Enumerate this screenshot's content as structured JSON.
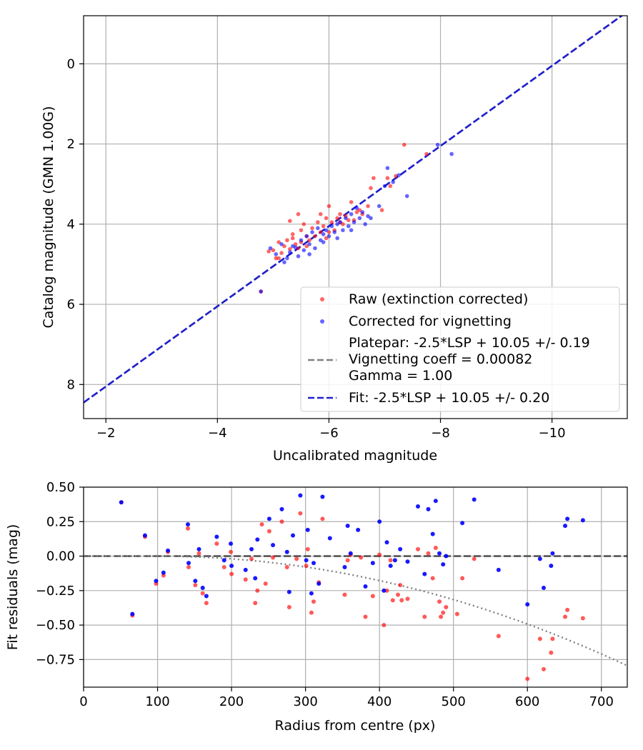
{
  "chart_data": [
    {
      "type": "scatter",
      "xlabel": "Uncalibrated magnitude",
      "ylabel": "Catalog magnitude (GMN 1.00G)",
      "xlim": [
        -1.6,
        -11.35
      ],
      "ylim": [
        -1.2,
        8.85
      ],
      "x_ticks": [
        -2,
        -4,
        -6,
        -8,
        -10
      ],
      "x_tick_labels": [
        "−2",
        "−4",
        "−6",
        "−8",
        "−10"
      ],
      "y_ticks": [
        0,
        2,
        4,
        6,
        8
      ],
      "y_tick_labels": [
        "0",
        "2",
        "4",
        "6",
        "8"
      ],
      "grid": true,
      "legend_position": "lower-right",
      "legend": {
        "raw": "Raw (extinction corrected)",
        "corrected": "Corrected for vignetting",
        "platepar_lines": [
          "Platepar: -2.5*LSP + 10.05 +/- 0.19",
          "Vignetting coeff = 0.00082",
          "Gamma = 1.00"
        ],
        "fit": "Fit: -2.5*LSP + 10.05 +/- 0.20"
      },
      "colors": {
        "raw": "#ff0000",
        "corrected": "#0000ff",
        "platepar": "#808080",
        "fit": "#2020d0"
      },
      "series": [
        {
          "name": "Raw (extinction corrected)",
          "points": [
            [
              -4.78,
              5.68
            ],
            [
              -4.92,
              4.68
            ],
            [
              -5.0,
              4.65
            ],
            [
              -5.05,
              4.85
            ],
            [
              -5.1,
              4.45
            ],
            [
              -5.15,
              4.72
            ],
            [
              -5.2,
              4.55
            ],
            [
              -5.25,
              4.4
            ],
            [
              -5.3,
              3.92
            ],
            [
              -5.3,
              4.62
            ],
            [
              -5.35,
              4.25
            ],
            [
              -5.4,
              4.5
            ],
            [
              -5.45,
              4.6
            ],
            [
              -5.5,
              4.15
            ],
            [
              -5.5,
              4.45
            ],
            [
              -5.55,
              4.0
            ],
            [
              -5.6,
              4.3
            ],
            [
              -5.65,
              4.4
            ],
            [
              -5.7,
              4.1
            ],
            [
              -5.75,
              4.3
            ],
            [
              -5.8,
              3.95
            ],
            [
              -5.85,
              4.2
            ],
            [
              -5.9,
              4.05
            ],
            [
              -5.95,
              4.35
            ],
            [
              -6.0,
              3.55
            ],
            [
              -6.05,
              3.95
            ],
            [
              -6.1,
              4.15
            ],
            [
              -6.15,
              3.85
            ],
            [
              -6.2,
              3.75
            ],
            [
              -6.25,
              4.0
            ],
            [
              -6.3,
              3.8
            ],
            [
              -6.35,
              3.9
            ],
            [
              -6.4,
              3.45
            ],
            [
              -6.45,
              3.9
            ],
            [
              -6.5,
              3.7
            ],
            [
              -6.55,
              3.65
            ],
            [
              -6.6,
              3.75
            ],
            [
              -6.7,
              3.55
            ],
            [
              -6.75,
              3.1
            ],
            [
              -6.8,
              2.85
            ],
            [
              -6.95,
              3.65
            ],
            [
              -7.05,
              2.85
            ],
            [
              -7.1,
              3.05
            ],
            [
              -7.2,
              2.8
            ],
            [
              -7.35,
              2.02
            ],
            [
              -7.75,
              2.25
            ],
            [
              -5.1,
              4.85
            ],
            [
              -5.35,
              4.35
            ],
            [
              -5.6,
              4.55
            ],
            [
              -5.85,
              3.75
            ],
            [
              -6.0,
              4.2
            ],
            [
              -6.2,
              3.95
            ],
            [
              -5.45,
              3.75
            ],
            [
              -5.95,
              3.85
            ]
          ]
        },
        {
          "name": "Corrected for vignetting",
          "points": [
            [
              -4.78,
              5.68
            ],
            [
              -4.95,
              4.6
            ],
            [
              -5.05,
              4.75
            ],
            [
              -5.15,
              4.5
            ],
            [
              -5.2,
              4.95
            ],
            [
              -5.3,
              4.7
            ],
            [
              -5.4,
              4.58
            ],
            [
              -5.45,
              4.8
            ],
            [
              -5.5,
              4.4
            ],
            [
              -5.55,
              4.65
            ],
            [
              -5.6,
              4.3
            ],
            [
              -5.65,
              4.5
            ],
            [
              -5.7,
              4.2
            ],
            [
              -5.75,
              4.6
            ],
            [
              -5.8,
              4.1
            ],
            [
              -5.85,
              4.4
            ],
            [
              -5.9,
              4.25
            ],
            [
              -5.95,
              4.15
            ],
            [
              -6.0,
              4.3
            ],
            [
              -6.05,
              4.05
            ],
            [
              -6.1,
              4.2
            ],
            [
              -6.15,
              4.0
            ],
            [
              -6.2,
              3.95
            ],
            [
              -6.25,
              4.15
            ],
            [
              -6.3,
              3.85
            ],
            [
              -6.35,
              4.05
            ],
            [
              -6.4,
              3.75
            ],
            [
              -6.45,
              3.95
            ],
            [
              -6.5,
              3.6
            ],
            [
              -6.55,
              3.85
            ],
            [
              -6.6,
              3.7
            ],
            [
              -6.65,
              4.0
            ],
            [
              -6.75,
              3.85
            ],
            [
              -6.9,
              3.55
            ],
            [
              -7.0,
              3.05
            ],
            [
              -7.05,
              2.6
            ],
            [
              -7.15,
              2.95
            ],
            [
              -7.25,
              2.78
            ],
            [
              -7.95,
              2.02
            ],
            [
              -8.2,
              2.25
            ],
            [
              -5.35,
              4.55
            ],
            [
              -5.65,
              4.75
            ],
            [
              -5.9,
              4.45
            ],
            [
              -6.15,
              4.35
            ],
            [
              -6.4,
              4.15
            ],
            [
              -6.7,
              3.8
            ],
            [
              -7.4,
              3.3
            ],
            [
              -5.25,
              4.85
            ]
          ]
        }
      ],
      "lines": [
        {
          "name": "Platepar",
          "intercept": 10.05,
          "slope": -2.5
        },
        {
          "name": "Fit",
          "intercept": 10.05,
          "slope": -2.5
        }
      ]
    },
    {
      "type": "scatter",
      "xlabel": "Radius from centre (px)",
      "ylabel": "Fit residuals (mag)",
      "xlim": [
        0,
        735
      ],
      "ylim": [
        -0.95,
        0.5
      ],
      "x_ticks": [
        0,
        100,
        200,
        300,
        400,
        500,
        600,
        700
      ],
      "x_tick_labels": [
        "0",
        "100",
        "200",
        "300",
        "400",
        "500",
        "600",
        "700"
      ],
      "y_ticks": [
        0.5,
        0.25,
        0.0,
        -0.25,
        -0.5,
        -0.75
      ],
      "y_tick_labels": [
        "0.50",
        "0.25",
        "0.00",
        "−0.25",
        "−0.50",
        "−0.75"
      ],
      "grid": true,
      "colors": {
        "raw": "#ff0000",
        "corrected": "#0000ff",
        "zero_line": "#555555",
        "vignetting_curve": "#808080"
      },
      "series": [
        {
          "name": "Raw (extinction corrected)",
          "points": [
            [
              51,
              0.39
            ],
            [
              66,
              -0.43
            ],
            [
              83,
              0.14
            ],
            [
              98,
              -0.2
            ],
            [
              108,
              -0.14
            ],
            [
              114,
              0.03
            ],
            [
              141,
              0.2
            ],
            [
              142,
              -0.08
            ],
            [
              151,
              -0.21
            ],
            [
              156,
              0.02
            ],
            [
              161,
              -0.27
            ],
            [
              166,
              -0.34
            ],
            [
              180,
              0.09
            ],
            [
              190,
              -0.08
            ],
            [
              199,
              0.03
            ],
            [
              200,
              -0.13
            ],
            [
              219,
              -0.17
            ],
            [
              227,
              -0.02
            ],
            [
              232,
              -0.34
            ],
            [
              235,
              -0.25
            ],
            [
              241,
              0.23
            ],
            [
              246,
              -0.2
            ],
            [
              251,
              0.18
            ],
            [
              256,
              -0.01
            ],
            [
              268,
              0.25
            ],
            [
              275,
              -0.08
            ],
            [
              278,
              -0.37
            ],
            [
              288,
              -0.02
            ],
            [
              293,
              0.31
            ],
            [
              301,
              -0.07
            ],
            [
              303,
              0.05
            ],
            [
              308,
              -0.41
            ],
            [
              311,
              -0.33
            ],
            [
              318,
              -0.19
            ],
            [
              323,
              0.27
            ],
            [
              353,
              -0.28
            ],
            [
              357,
              -0.03
            ],
            [
              361,
              0.01
            ],
            [
              375,
              -0.01
            ],
            [
              381,
              -0.44
            ],
            [
              391,
              -0.29
            ],
            [
              400,
              0.01
            ],
            [
              406,
              -0.5
            ],
            [
              410,
              -0.25
            ],
            [
              415,
              -0.03
            ],
            [
              418,
              -0.32
            ],
            [
              425,
              -0.28
            ],
            [
              428,
              -0.21
            ],
            [
              430,
              -0.32
            ],
            [
              438,
              -0.31
            ],
            [
              452,
              0.05
            ],
            [
              461,
              -0.44
            ],
            [
              466,
              0.02
            ],
            [
              472,
              -0.16
            ],
            [
              476,
              0.06
            ],
            [
              481,
              -0.33
            ],
            [
              483,
              -0.44
            ],
            [
              486,
              -0.41
            ],
            [
              490,
              -0.37
            ],
            [
              505,
              -0.42
            ],
            [
              512,
              -0.16
            ],
            [
              528,
              -0.02
            ],
            [
              561,
              -0.58
            ],
            [
              600,
              -0.89
            ],
            [
              617,
              -0.6
            ],
            [
              622,
              -0.82
            ],
            [
              632,
              -0.7
            ],
            [
              634,
              -0.6
            ],
            [
              651,
              -0.44
            ],
            [
              654,
              -0.39
            ],
            [
              675,
              -0.45
            ]
          ]
        },
        {
          "name": "Corrected for vignetting",
          "points": [
            [
              51,
              0.39
            ],
            [
              66,
              -0.42
            ],
            [
              83,
              0.15
            ],
            [
              98,
              -0.18
            ],
            [
              108,
              -0.12
            ],
            [
              114,
              0.04
            ],
            [
              141,
              0.23
            ],
            [
              142,
              -0.05
            ],
            [
              151,
              -0.18
            ],
            [
              156,
              0.05
            ],
            [
              161,
              -0.23
            ],
            [
              166,
              -0.29
            ],
            [
              180,
              0.14
            ],
            [
              190,
              -0.03
            ],
            [
              199,
              0.09
            ],
            [
              200,
              -0.07
            ],
            [
              219,
              -0.1
            ],
            [
              227,
              0.05
            ],
            [
              232,
              -0.16
            ],
            [
              235,
              0.12
            ],
            [
              251,
              0.27
            ],
            [
              256,
              0.08
            ],
            [
              268,
              0.34
            ],
            [
              275,
              0.03
            ],
            [
              278,
              -0.26
            ],
            [
              283,
              0.15
            ],
            [
              293,
              0.44
            ],
            [
              301,
              -0.03
            ],
            [
              303,
              0.19
            ],
            [
              308,
              -0.27
            ],
            [
              311,
              -0.05
            ],
            [
              318,
              -0.2
            ],
            [
              323,
              0.43
            ],
            [
              333,
              0.13
            ],
            [
              353,
              -0.08
            ],
            [
              357,
              0.22
            ],
            [
              361,
              0.02
            ],
            [
              371,
              0.19
            ],
            [
              381,
              -0.22
            ],
            [
              391,
              -0.05
            ],
            [
              400,
              0.25
            ],
            [
              406,
              -0.25
            ],
            [
              410,
              0.1
            ],
            [
              415,
              -0.07
            ],
            [
              421,
              -0.03
            ],
            [
              428,
              0.05
            ],
            [
              438,
              -0.04
            ],
            [
              452,
              0.36
            ],
            [
              461,
              -0.13
            ],
            [
              466,
              0.34
            ],
            [
              472,
              0.16
            ],
            [
              476,
              0.4
            ],
            [
              481,
              0.02
            ],
            [
              486,
              -0.06
            ],
            [
              490,
              0.0
            ],
            [
              512,
              0.24
            ],
            [
              528,
              0.41
            ],
            [
              561,
              -0.1
            ],
            [
              600,
              -0.35
            ],
            [
              617,
              -0.02
            ],
            [
              622,
              -0.23
            ],
            [
              632,
              -0.07
            ],
            [
              634,
              0.02
            ],
            [
              651,
              0.22
            ],
            [
              654,
              0.27
            ],
            [
              675,
              0.26
            ]
          ]
        }
      ]
    }
  ]
}
